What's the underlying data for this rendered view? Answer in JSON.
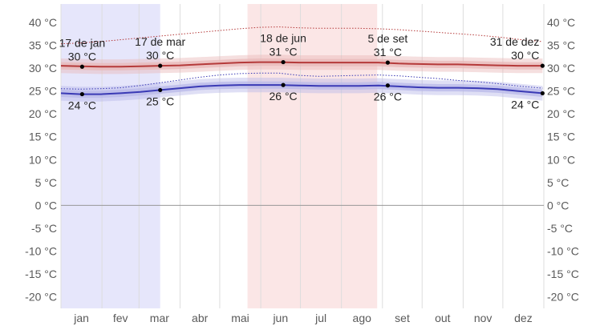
{
  "chart_data": {
    "type": "line",
    "title": "",
    "xlabel": "",
    "ylabel": "",
    "ylim": [
      -22.5,
      44
    ],
    "x_ticks": [
      -20,
      -15,
      -10,
      -5,
      0,
      5,
      10,
      15,
      20,
      25,
      30,
      35,
      40
    ],
    "y_unit": "°C",
    "month_labels": [
      "jan",
      "fev",
      "mar",
      "abr",
      "mai",
      "jun",
      "jul",
      "ago",
      "set",
      "out",
      "nov",
      "dez"
    ],
    "shaded_periods": [
      {
        "start_day": 0,
        "end_day": 75,
        "color": "#e6e6fb"
      },
      {
        "start_day": 141,
        "end_day": 239,
        "color": "#fbe6e6"
      }
    ],
    "series": [
      {
        "color": "#b53a3a",
        "band_color": "#e8b8b8",
        "day": [
          0,
          15,
          30,
          45,
          60,
          75,
          90,
          105,
          120,
          135,
          150,
          165,
          180,
          195,
          210,
          225,
          240,
          255,
          270,
          285,
          300,
          315,
          330,
          345,
          364
        ],
        "values": [
          30.5,
          30.4,
          30.3,
          30.3,
          30.4,
          30.5,
          30.6,
          30.8,
          31.0,
          31.2,
          31.3,
          31.3,
          31.2,
          31.2,
          31.2,
          31.2,
          31.2,
          31.0,
          30.9,
          30.8,
          30.8,
          30.7,
          30.6,
          30.5,
          30.5
        ],
        "inner_low": [
          29.7,
          29.6,
          29.5,
          29.5,
          29.6,
          29.7,
          29.8,
          30.0,
          30.2,
          30.4,
          30.5,
          30.5,
          30.4,
          30.4,
          30.4,
          30.4,
          30.4,
          30.2,
          30.1,
          30.0,
          30.0,
          29.9,
          29.8,
          29.7,
          29.7
        ],
        "inner_high": [
          31.3,
          31.2,
          31.1,
          31.1,
          31.2,
          31.3,
          31.4,
          31.6,
          31.8,
          32.0,
          32.1,
          32.1,
          32.0,
          32.0,
          32.0,
          32.0,
          32.0,
          31.8,
          31.7,
          31.6,
          31.6,
          31.5,
          31.4,
          31.3,
          31.3
        ],
        "outer_low": [
          28.9,
          28.8,
          28.7,
          28.7,
          28.8,
          28.9,
          29.0,
          29.2,
          29.4,
          29.6,
          29.7,
          29.7,
          29.6,
          29.6,
          29.6,
          29.6,
          29.6,
          29.4,
          29.3,
          29.2,
          29.2,
          29.1,
          29.0,
          28.9,
          28.9
        ],
        "outer_high": [
          32.1,
          32.0,
          31.9,
          31.9,
          32.0,
          32.1,
          32.2,
          32.4,
          32.6,
          32.8,
          32.9,
          32.9,
          32.8,
          32.8,
          32.8,
          32.8,
          32.8,
          32.6,
          32.5,
          32.4,
          32.4,
          32.3,
          32.2,
          32.1,
          32.1
        ],
        "dotted": [
          35.3,
          35.5,
          35.8,
          36.2,
          36.6,
          37.0,
          37.4,
          37.8,
          38.2,
          38.6,
          38.9,
          39.0,
          38.8,
          38.7,
          38.7,
          38.7,
          38.6,
          38.4,
          38.1,
          37.8,
          37.5,
          37.2,
          36.8,
          36.3,
          35.8
        ]
      },
      {
        "color": "#3a3ab5",
        "band_color": "#b8b8e8",
        "day": [
          0,
          15,
          30,
          45,
          60,
          75,
          90,
          105,
          120,
          135,
          150,
          165,
          180,
          195,
          210,
          225,
          240,
          255,
          270,
          285,
          300,
          315,
          330,
          345,
          364
        ],
        "values": [
          24.5,
          24.3,
          24.3,
          24.5,
          24.8,
          25.2,
          25.6,
          26.0,
          26.2,
          26.3,
          26.3,
          26.3,
          26.2,
          26.1,
          26.1,
          26.1,
          26.2,
          26.0,
          25.8,
          25.7,
          25.7,
          25.6,
          25.4,
          25.0,
          24.5
        ],
        "inner_low": [
          23.7,
          23.5,
          23.5,
          23.7,
          24.0,
          24.4,
          24.8,
          25.2,
          25.4,
          25.5,
          25.5,
          25.5,
          25.4,
          25.3,
          25.3,
          25.3,
          25.4,
          25.2,
          25.0,
          24.9,
          24.9,
          24.8,
          24.6,
          24.2,
          23.7
        ],
        "inner_high": [
          25.3,
          25.1,
          25.1,
          25.3,
          25.6,
          26.0,
          26.4,
          26.8,
          27.0,
          27.1,
          27.1,
          27.1,
          27.0,
          26.9,
          26.9,
          26.9,
          27.0,
          26.8,
          26.6,
          26.5,
          26.5,
          26.4,
          26.2,
          25.8,
          25.3
        ],
        "outer_low": [
          22.9,
          22.7,
          22.7,
          22.9,
          23.2,
          23.6,
          24.0,
          24.4,
          24.6,
          24.7,
          24.7,
          24.7,
          24.6,
          24.5,
          24.5,
          24.5,
          24.6,
          24.4,
          24.2,
          24.1,
          24.1,
          24.0,
          23.8,
          23.4,
          22.9
        ],
        "outer_high": [
          26.1,
          25.9,
          25.9,
          26.1,
          26.4,
          26.8,
          27.2,
          27.6,
          27.8,
          27.9,
          27.9,
          27.9,
          27.8,
          27.7,
          27.7,
          27.7,
          27.8,
          27.6,
          27.4,
          27.3,
          27.3,
          27.2,
          27.0,
          26.6,
          26.1
        ],
        "dotted": [
          25.5,
          25.4,
          25.5,
          25.7,
          26.2,
          26.8,
          27.4,
          28.0,
          28.5,
          28.8,
          28.9,
          28.9,
          28.4,
          28.2,
          28.3,
          28.4,
          28.5,
          28.3,
          28.0,
          27.7,
          27.3,
          27.0,
          26.6,
          26.1,
          25.6
        ]
      }
    ],
    "annotations": [
      {
        "day": 16,
        "value": 30.3,
        "date": "17 de jan",
        "label": "30 °C",
        "position": "above"
      },
      {
        "day": 75,
        "value": 30.5,
        "date": "17 de mar",
        "label": "30 °C",
        "position": "above"
      },
      {
        "day": 168,
        "value": 31.3,
        "date": "18 de jun",
        "label": "31 °C",
        "position": "above"
      },
      {
        "day": 247,
        "value": 31.2,
        "date": "5 de set",
        "label": "31 °C",
        "position": "above"
      },
      {
        "day": 364,
        "value": 30.5,
        "date": "31 de dez",
        "label": "30 °C",
        "position": "above"
      },
      {
        "day": 16,
        "value": 24.3,
        "date": "",
        "label": "24 °C",
        "position": "below"
      },
      {
        "day": 75,
        "value": 25.2,
        "date": "",
        "label": "25 °C",
        "position": "below"
      },
      {
        "day": 168,
        "value": 26.3,
        "date": "",
        "label": "26 °C",
        "position": "below"
      },
      {
        "day": 247,
        "value": 26.2,
        "date": "",
        "label": "26 °C",
        "position": "below"
      },
      {
        "day": 364,
        "value": 24.5,
        "date": "",
        "label": "24 °C",
        "position": "below"
      }
    ]
  }
}
